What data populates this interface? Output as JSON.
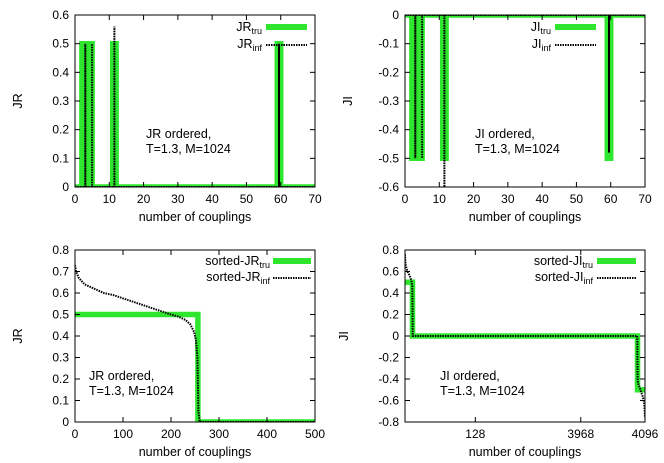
{
  "chart_data": [
    {
      "type": "line",
      "panel": "top-left",
      "xlabel": "number of couplings",
      "ylabel": "JR",
      "xlim": [
        0,
        70
      ],
      "ylim": [
        0,
        0.6
      ],
      "xticks": [
        "0",
        "10",
        "20",
        "30",
        "40",
        "50",
        "60",
        "70"
      ],
      "yticks": [
        "0",
        "0.1",
        "0.2",
        "0.3",
        "0.4",
        "0.5",
        "0.6"
      ],
      "annotation": [
        "JR ordered,",
        "T=1.3, M=1024"
      ],
      "legend_position": "top-right",
      "legend": [
        {
          "base": "JR",
          "sub": "tru"
        },
        {
          "base": "JR",
          "sub": "inf"
        }
      ],
      "series": [
        {
          "name": "JRtru",
          "color": "#2ee62e",
          "style": "thick-solid",
          "x": [
            0,
            2,
            2,
            3,
            3,
            4,
            4,
            5,
            5,
            11,
            11,
            12,
            12,
            59,
            59,
            60,
            60,
            70
          ],
          "y": [
            0,
            0,
            0.5,
            0.5,
            0,
            0,
            0.5,
            0.5,
            0,
            0,
            0.5,
            0.5,
            0,
            0,
            0.5,
            0.5,
            0,
            0
          ]
        },
        {
          "name": "JRinf",
          "color": "#000000",
          "style": "dotted",
          "x": [
            0,
            3,
            3,
            3,
            5,
            5,
            5,
            11.5,
            11.5,
            11.5,
            59.5,
            59.5,
            59.5,
            70
          ],
          "y": [
            0,
            0,
            0.5,
            0,
            0,
            0.5,
            0,
            0,
            0.56,
            0,
            0,
            0.5,
            0,
            0
          ]
        }
      ]
    },
    {
      "type": "line",
      "panel": "top-right",
      "xlabel": "number of couplings",
      "ylabel": "JI",
      "xlim": [
        0,
        70
      ],
      "ylim": [
        -0.6,
        0
      ],
      "xticks": [
        "0",
        "10",
        "20",
        "30",
        "40",
        "50",
        "60",
        "70"
      ],
      "yticks": [
        "-0.6",
        "-0.5",
        "-0.4",
        "-0.3",
        "-0.2",
        "-0.1",
        "0"
      ],
      "annotation": [
        "JI ordered,",
        "T=1.3, M=1024"
      ],
      "legend_position": "top-right",
      "legend": [
        {
          "base": "JI",
          "sub": "tru"
        },
        {
          "base": "JI",
          "sub": "inf"
        }
      ],
      "series": [
        {
          "name": "JItru",
          "color": "#2ee62e",
          "style": "thick-solid",
          "x": [
            0,
            2,
            2,
            3,
            3,
            4,
            4,
            5,
            5,
            11,
            11,
            12,
            12,
            59,
            59,
            60,
            60,
            70
          ],
          "y": [
            0,
            0,
            -0.5,
            -0.5,
            0,
            0,
            -0.5,
            -0.5,
            0,
            0,
            -0.5,
            -0.5,
            0,
            0,
            -0.5,
            -0.5,
            0,
            0
          ]
        },
        {
          "name": "JIinf",
          "color": "#000000",
          "style": "dotted",
          "x": [
            0,
            3,
            3,
            3,
            5,
            5,
            5,
            11.5,
            11.5,
            11.5,
            59.5,
            59.5,
            59.5,
            70
          ],
          "y": [
            0,
            0,
            -0.5,
            0,
            0,
            -0.5,
            0,
            0,
            -0.6,
            0,
            0,
            -0.48,
            0,
            0
          ]
        }
      ]
    },
    {
      "type": "line",
      "panel": "bottom-left",
      "xlabel": "number of couplings",
      "ylabel": "JR",
      "xlim": [
        0,
        500
      ],
      "ylim": [
        0,
        0.8
      ],
      "xticks": [
        "0",
        "100",
        "200",
        "300",
        "400",
        "500"
      ],
      "yticks": [
        "0",
        "0.1",
        "0.2",
        "0.3",
        "0.4",
        "0.5",
        "0.6",
        "0.7",
        "0.8"
      ],
      "annotation": [
        "JR ordered,",
        "T=1.3, M=1024"
      ],
      "legend_position": "top-right",
      "legend": [
        {
          "base": "sorted-JR",
          "sub": "tru"
        },
        {
          "base": "sorted-JR",
          "sub": "inf"
        }
      ],
      "series": [
        {
          "name": "sorted-JRtru",
          "color": "#2ee62e",
          "style": "thick-solid",
          "x": [
            0,
            256,
            256,
            500
          ],
          "y": [
            0.5,
            0.5,
            0,
            0
          ]
        },
        {
          "name": "sorted-JRinf",
          "color": "#000000",
          "style": "dotted",
          "x": [
            0,
            2,
            8,
            20,
            40,
            60,
            80,
            100,
            120,
            140,
            160,
            180,
            200,
            215,
            230,
            240,
            248,
            252,
            255,
            257,
            260,
            500
          ],
          "y": [
            0.73,
            0.7,
            0.67,
            0.64,
            0.62,
            0.6,
            0.59,
            0.575,
            0.56,
            0.545,
            0.53,
            0.515,
            0.5,
            0.49,
            0.475,
            0.455,
            0.42,
            0.38,
            0.3,
            0.05,
            0,
            0
          ]
        }
      ]
    },
    {
      "type": "line",
      "panel": "bottom-right",
      "xlabel": "number of couplings",
      "ylabel": "JI",
      "xlim": [
        0,
        4096
      ],
      "ylim": [
        -0.8,
        0.8
      ],
      "xticks": [
        "128",
        "3968",
        "4096"
      ],
      "yticks": [
        "-0.8",
        "-0.6",
        "-0.4",
        "-0.2",
        "0",
        "0.2",
        "0.4",
        "0.6",
        "0.8"
      ],
      "zero_line": "dotted",
      "annotation": [
        "JI ordered,",
        "T=1.3, M=1024"
      ],
      "legend_position": "top-right",
      "legend": [
        {
          "base": "sorted-JI",
          "sub": "tru"
        },
        {
          "base": "sorted-JI",
          "sub": "inf"
        }
      ],
      "series": [
        {
          "name": "sorted-JItru",
          "color": "#2ee62e",
          "style": "thick-solid",
          "x": [
            0,
            128,
            128,
            3968,
            3968,
            4096
          ],
          "y": [
            0.5,
            0.5,
            0,
            0,
            -0.5,
            -0.5
          ]
        },
        {
          "name": "sorted-JIinf",
          "color": "#000000",
          "style": "dotted",
          "x": [
            0,
            5,
            12,
            25,
            45,
            70,
            95,
            115,
            124,
            128,
            132,
            3964,
            3968,
            3972,
            3984,
            4005,
            4030,
            4055,
            4075,
            4088,
            4096
          ],
          "y": [
            0.76,
            0.7,
            0.66,
            0.63,
            0.6,
            0.57,
            0.54,
            0.5,
            0.46,
            0.3,
            0,
            0,
            -0.3,
            -0.42,
            -0.45,
            -0.48,
            -0.52,
            -0.56,
            -0.6,
            -0.66,
            -0.76
          ]
        }
      ]
    }
  ]
}
